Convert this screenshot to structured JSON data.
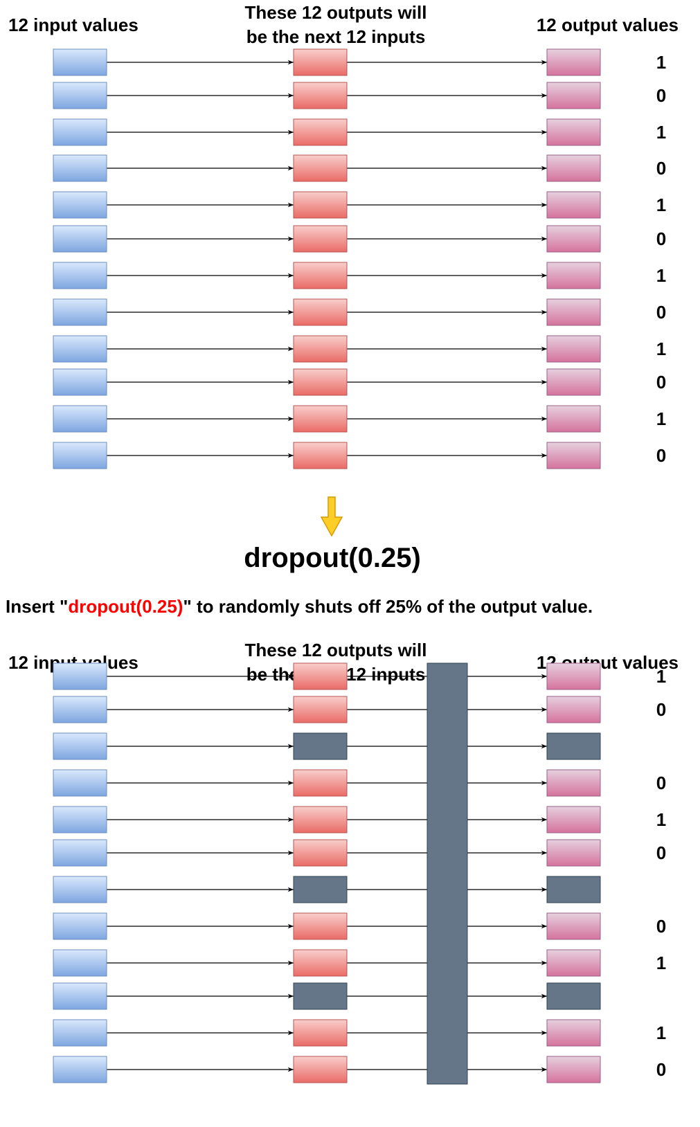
{
  "top": {
    "input_header": "12 input values",
    "hidden_header_line1": "These 12 outputs will",
    "hidden_header_line2": "be the next 12 inputs",
    "output_header": "12 output values",
    "output_labels": [
      "1",
      "0",
      "1",
      "0",
      "1",
      "0",
      "1",
      "0",
      "1",
      "0",
      "1",
      "0"
    ]
  },
  "arrow_label": "dropout(0.25)",
  "note": {
    "prefix": "Insert \"",
    "highlight": "dropout(0.25)",
    "suffix": "\" to randomly shuts off 25% of the output value."
  },
  "bottom": {
    "input_header": "12 input values",
    "hidden_header_line1": "These 12 outputs will",
    "hidden_header_line2": "be the next 12 inputs",
    "output_header": "12 output values",
    "dropped": [
      false,
      false,
      true,
      false,
      false,
      false,
      true,
      false,
      false,
      true,
      false,
      false
    ],
    "output_labels": [
      "1",
      "0",
      "",
      "0",
      "1",
      "0",
      "",
      "0",
      "1",
      "",
      "1",
      "0"
    ]
  },
  "colors": {
    "input_top": "#dae8fc",
    "input_bottom": "#7ea6e0",
    "input_stroke": "#6c8ebf",
    "hidden_top": "#f8cecc",
    "hidden_bottom": "#ea6b66",
    "hidden_stroke": "#b85450",
    "output_top": "#e6d0de",
    "output_bottom": "#d5739d",
    "output_stroke": "#996185",
    "dropped_fill": "#647687",
    "dropped_stroke": "#314354",
    "arrow_fill": "#ffcd28",
    "arrow_stroke": "#d79b00",
    "highlight_text": "#ff0000"
  }
}
